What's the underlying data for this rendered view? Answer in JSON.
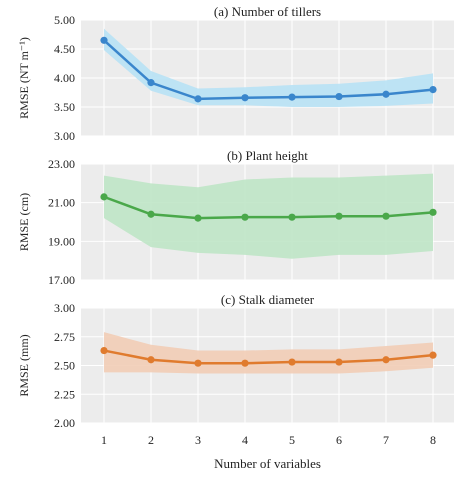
{
  "chart_data": [
    {
      "type": "line",
      "title": "(a) Number of tillers",
      "ylabel": "RMSE (NT m⁻¹)",
      "xlabel": "",
      "x": [
        1,
        2,
        3,
        4,
        5,
        6,
        7,
        8
      ],
      "ylim": [
        3.0,
        5.0
      ],
      "yticks": [
        "3.00",
        "3.50",
        "4.00",
        "4.50",
        "5.00"
      ],
      "grid": true,
      "series": [
        {
          "values": [
            4.65,
            3.92,
            3.64,
            3.66,
            3.67,
            3.68,
            3.72,
            3.8
          ],
          "lower": [
            4.48,
            3.78,
            3.53,
            3.53,
            3.5,
            3.5,
            3.52,
            3.56
          ],
          "upper": [
            4.85,
            4.12,
            3.82,
            3.84,
            3.88,
            3.9,
            3.96,
            4.08
          ],
          "color": "#3a86cc",
          "band_color": "#b8e2f5"
        }
      ]
    },
    {
      "type": "line",
      "title": "(b) Plant height",
      "ylabel": "RMSE (cm)",
      "xlabel": "",
      "x": [
        1,
        2,
        3,
        4,
        5,
        6,
        7,
        8
      ],
      "ylim": [
        17.0,
        23.0
      ],
      "yticks": [
        "17.00",
        "19.00",
        "21.00",
        "23.00"
      ],
      "grid": true,
      "series": [
        {
          "values": [
            21.3,
            20.4,
            20.2,
            20.25,
            20.25,
            20.3,
            20.3,
            20.5
          ],
          "lower": [
            20.2,
            18.7,
            18.4,
            18.3,
            18.1,
            18.3,
            18.3,
            18.5
          ],
          "upper": [
            22.4,
            22.0,
            21.8,
            22.2,
            22.3,
            22.3,
            22.4,
            22.5
          ],
          "color": "#4aa84a",
          "band_color": "#bfe6c6"
        }
      ]
    },
    {
      "type": "line",
      "title": "(c) Stalk diameter",
      "ylabel": "RMSE (mm)",
      "xlabel": "Number of variables",
      "x": [
        1,
        2,
        3,
        4,
        5,
        6,
        7,
        8
      ],
      "xticks": [
        "1",
        "2",
        "3",
        "4",
        "5",
        "6",
        "7",
        "8"
      ],
      "ylim": [
        2.0,
        3.0
      ],
      "yticks": [
        "2.00",
        "2.25",
        "2.50",
        "2.75",
        "3.00"
      ],
      "grid": true,
      "series": [
        {
          "values": [
            2.63,
            2.55,
            2.52,
            2.52,
            2.53,
            2.53,
            2.55,
            2.59
          ],
          "lower": [
            2.44,
            2.44,
            2.43,
            2.43,
            2.43,
            2.43,
            2.45,
            2.48
          ],
          "upper": [
            2.79,
            2.68,
            2.63,
            2.63,
            2.64,
            2.64,
            2.67,
            2.7
          ],
          "color": "#e07b2e",
          "band_color": "#f2cdb6"
        }
      ]
    }
  ]
}
